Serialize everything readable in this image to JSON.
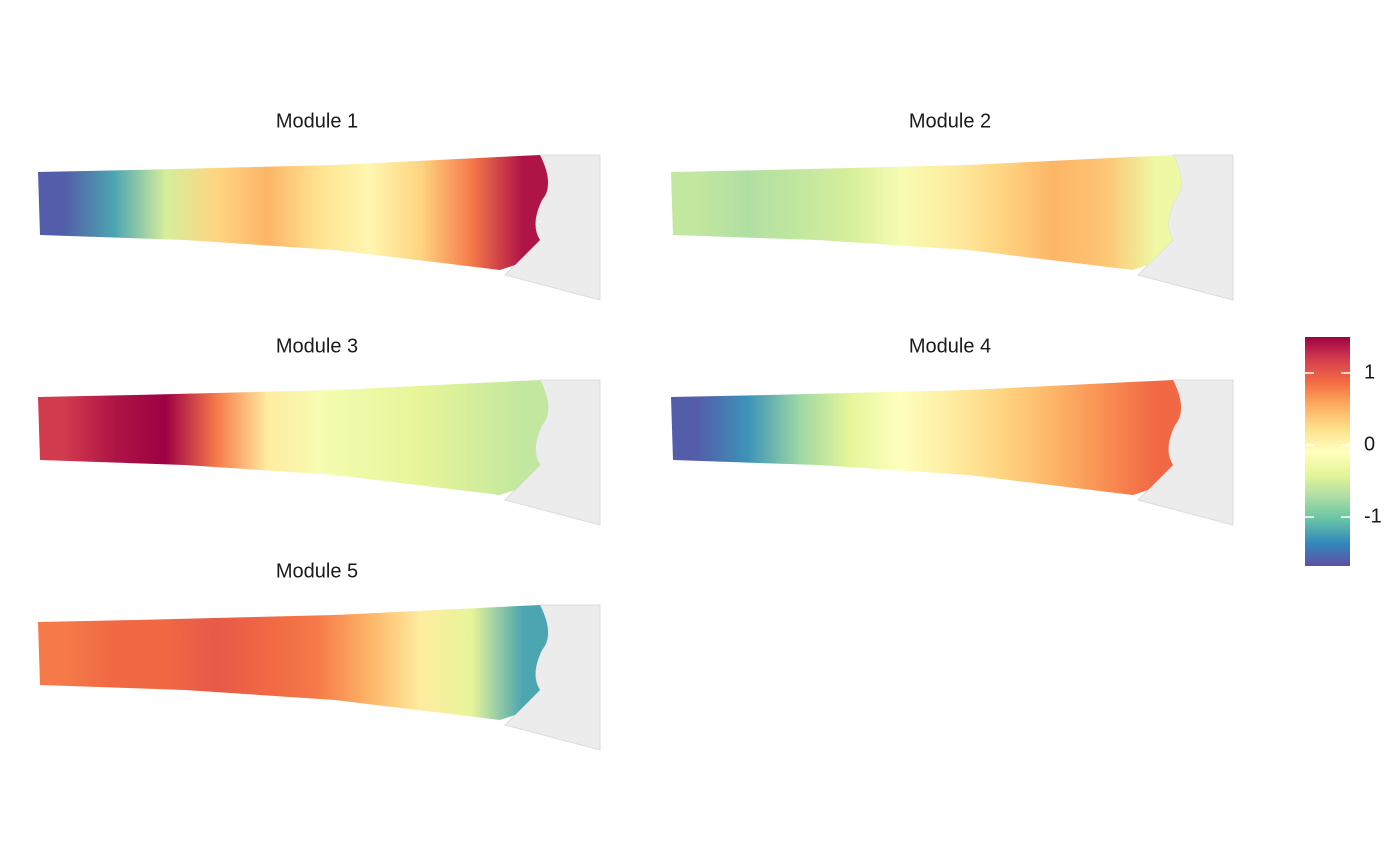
{
  "chart_data": {
    "type": "spatial-grid",
    "colors": [
      "#5e4fa2",
      "#3288bd",
      "#66c2a5",
      "#abdda4",
      "#e6f598",
      "#ffffbf",
      "#fee08b",
      "#fdae61",
      "#f46d43",
      "#d53e4f",
      "#9e0142"
    ],
    "zlim": [
      -1.68,
      1.5
    ],
    "zticks": [
      -1,
      0,
      1
    ],
    "panels": [
      {
        "title": "Module 1",
        "values": [
          -1.6,
          -1.2,
          -0.5,
          0.3,
          0.5,
          0.2,
          0,
          0.3,
          0.8,
          1.4
        ]
      },
      {
        "title": "Module 2",
        "values": [
          -0.6,
          -0.7,
          -0.6,
          -0.5,
          -0.2,
          0.1,
          0.3,
          0.5,
          0.4,
          -0.3
        ]
      },
      {
        "title": "Module 3",
        "values": [
          1.2,
          1.4,
          1.5,
          0.8,
          0.1,
          -0.2,
          -0.3,
          -0.4,
          -0.5,
          -0.6
        ]
      },
      {
        "title": "Module 4",
        "values": [
          -1.6,
          -1.3,
          -0.8,
          -0.4,
          -0.1,
          0.1,
          0.3,
          0.5,
          0.7,
          0.9
        ]
      },
      {
        "title": "Module 5",
        "values": [
          0.8,
          0.9,
          0.9,
          1.0,
          0.9,
          0.8,
          0.5,
          0.1,
          -0.4,
          -1.2
        ]
      }
    ]
  }
}
